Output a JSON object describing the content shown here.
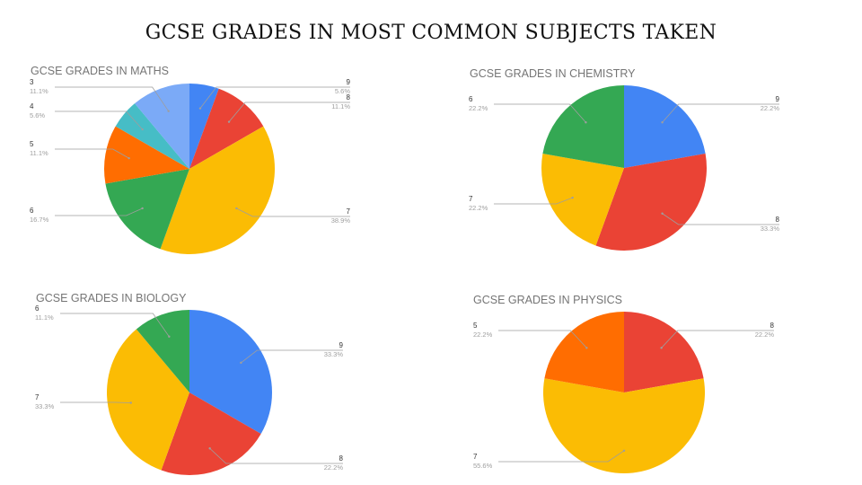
{
  "slide": {
    "title": "GCSE GRADES IN MOST COMMON SUBJECTS TAKEN"
  },
  "chart_data": [
    {
      "type": "pie",
      "title": "GCSE GRADES IN MATHS",
      "categories": [
        "9",
        "8",
        "7",
        "6",
        "5",
        "4",
        "3"
      ],
      "values": [
        5.6,
        11.1,
        38.9,
        16.7,
        11.1,
        5.6,
        11.1
      ],
      "labels_pct": [
        "5.6%",
        "11.1%",
        "38.9%",
        "16.7%",
        "11.1%",
        "5.6%",
        "11.1%"
      ],
      "colors": [
        "#4285f4",
        "#ea4335",
        "#fbbc04",
        "#34a853",
        "#ff6d01",
        "#46bdc6",
        "#7baaf7"
      ],
      "legend": "labeled slices"
    },
    {
      "type": "pie",
      "title": "GCSE GRADES IN CHEMISTRY",
      "categories": [
        "9",
        "8",
        "7",
        "6"
      ],
      "values": [
        22.2,
        33.3,
        22.2,
        22.2
      ],
      "labels_pct": [
        "22.2%",
        "33.3%",
        "22.2%",
        "22.2%"
      ],
      "colors": [
        "#4285f4",
        "#ea4335",
        "#fbbc04",
        "#34a853"
      ],
      "legend": "labeled slices"
    },
    {
      "type": "pie",
      "title": "GCSE GRADES IN BIOLOGY",
      "categories": [
        "9",
        "8",
        "7",
        "6"
      ],
      "values": [
        33.3,
        22.2,
        33.3,
        11.1
      ],
      "labels_pct": [
        "33.3%",
        "22.2%",
        "33.3%",
        "11.1%"
      ],
      "colors": [
        "#4285f4",
        "#ea4335",
        "#fbbc04",
        "#34a853"
      ],
      "legend": "labeled slices"
    },
    {
      "type": "pie",
      "title": "GCSE GRADES IN PHYSICS",
      "categories": [
        "8",
        "7",
        "5"
      ],
      "values": [
        22.2,
        55.6,
        22.2
      ],
      "labels_pct": [
        "22.2%",
        "55.6%",
        "22.2%"
      ],
      "colors": [
        "#ea4335",
        "#fbbc04",
        "#ff6d01"
      ],
      "legend": "labeled slices"
    }
  ]
}
